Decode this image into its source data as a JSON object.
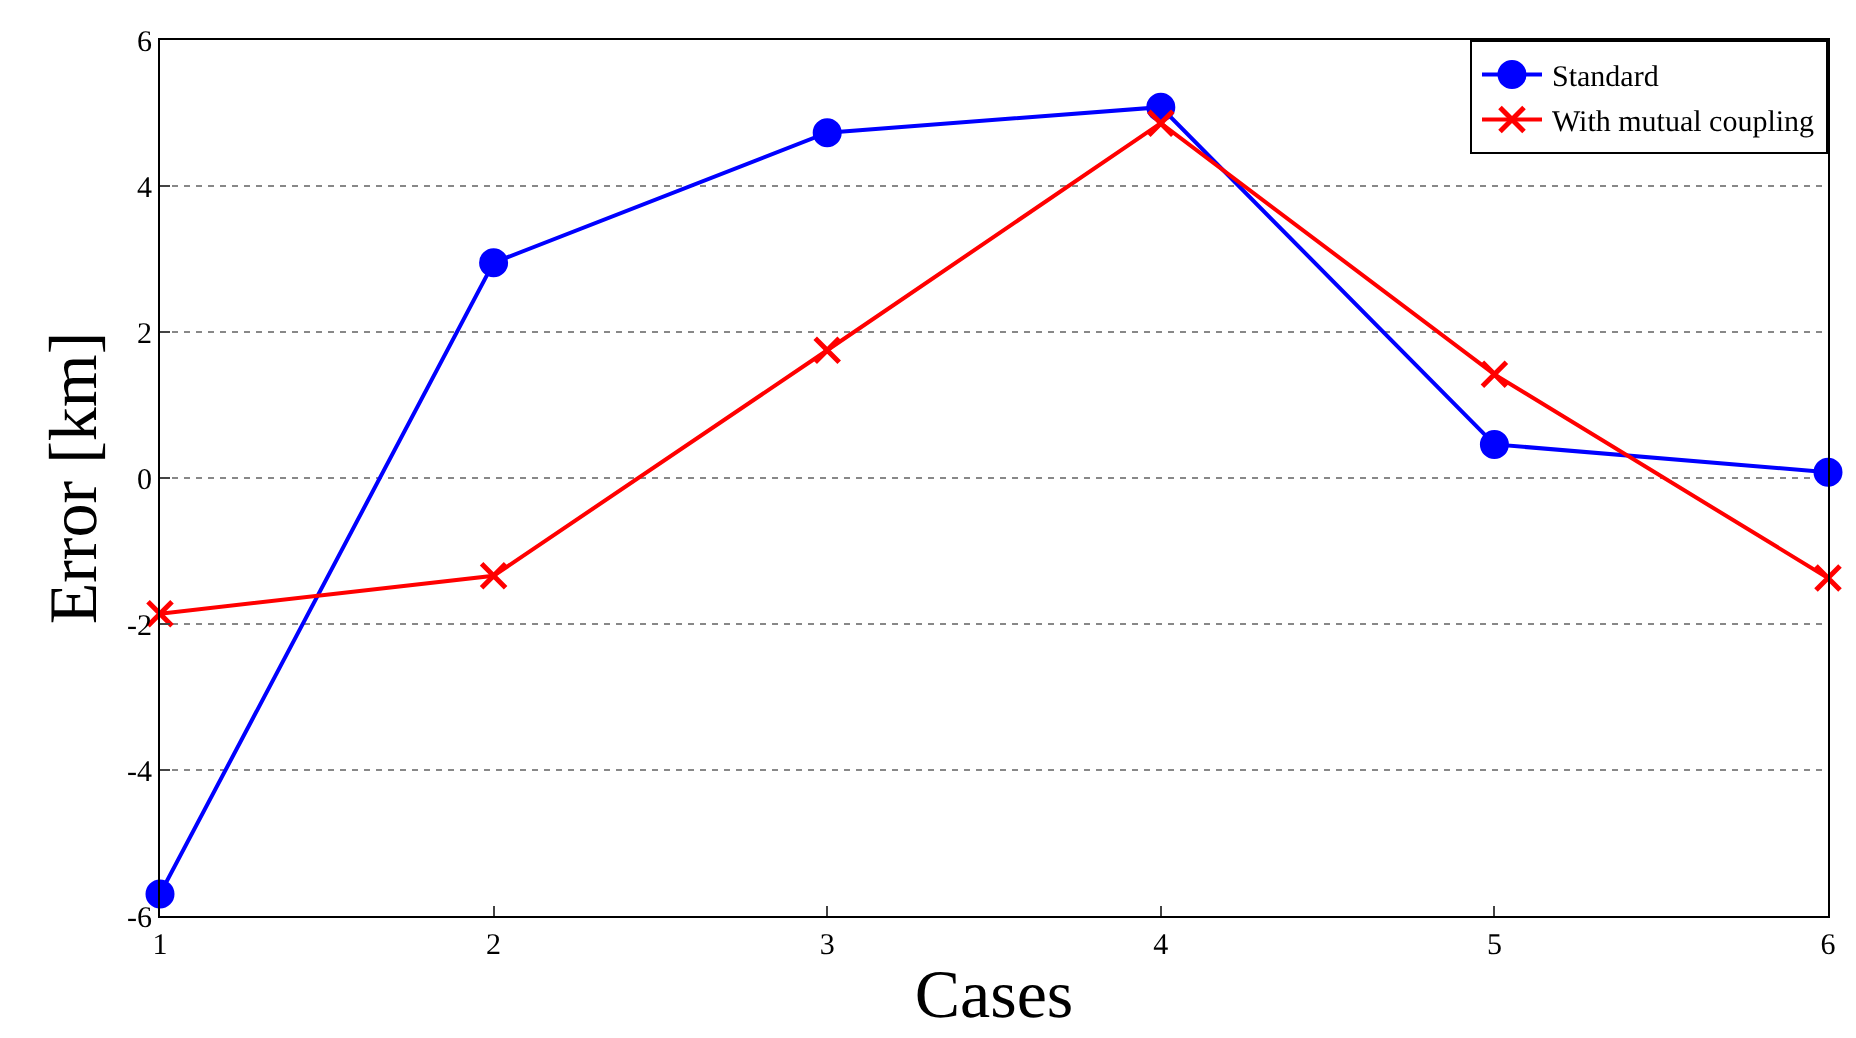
{
  "chart_data": {
    "type": "line",
    "xlabel": "Cases",
    "ylabel": "Error [km]",
    "x": [
      1,
      2,
      3,
      4,
      5,
      6
    ],
    "series": [
      {
        "name": "Standard",
        "color": "#0000ff",
        "marker": "circle",
        "values": [
          -5.7,
          2.95,
          4.73,
          5.08,
          0.46,
          0.08
        ]
      },
      {
        "name": "With mutual coupling",
        "color": "#ff0000",
        "marker": "cross",
        "values": [
          -1.86,
          -1.34,
          1.75,
          4.86,
          1.42,
          -1.37
        ]
      }
    ],
    "xlim": [
      1,
      6
    ],
    "xticks": [
      1,
      2,
      3,
      4,
      5,
      6
    ],
    "ylim": [
      -6,
      6
    ],
    "yticks": [
      -6,
      -4,
      -2,
      0,
      2,
      4,
      6
    ],
    "grid": "y",
    "legend": "top right",
    "line_style": "solid"
  }
}
